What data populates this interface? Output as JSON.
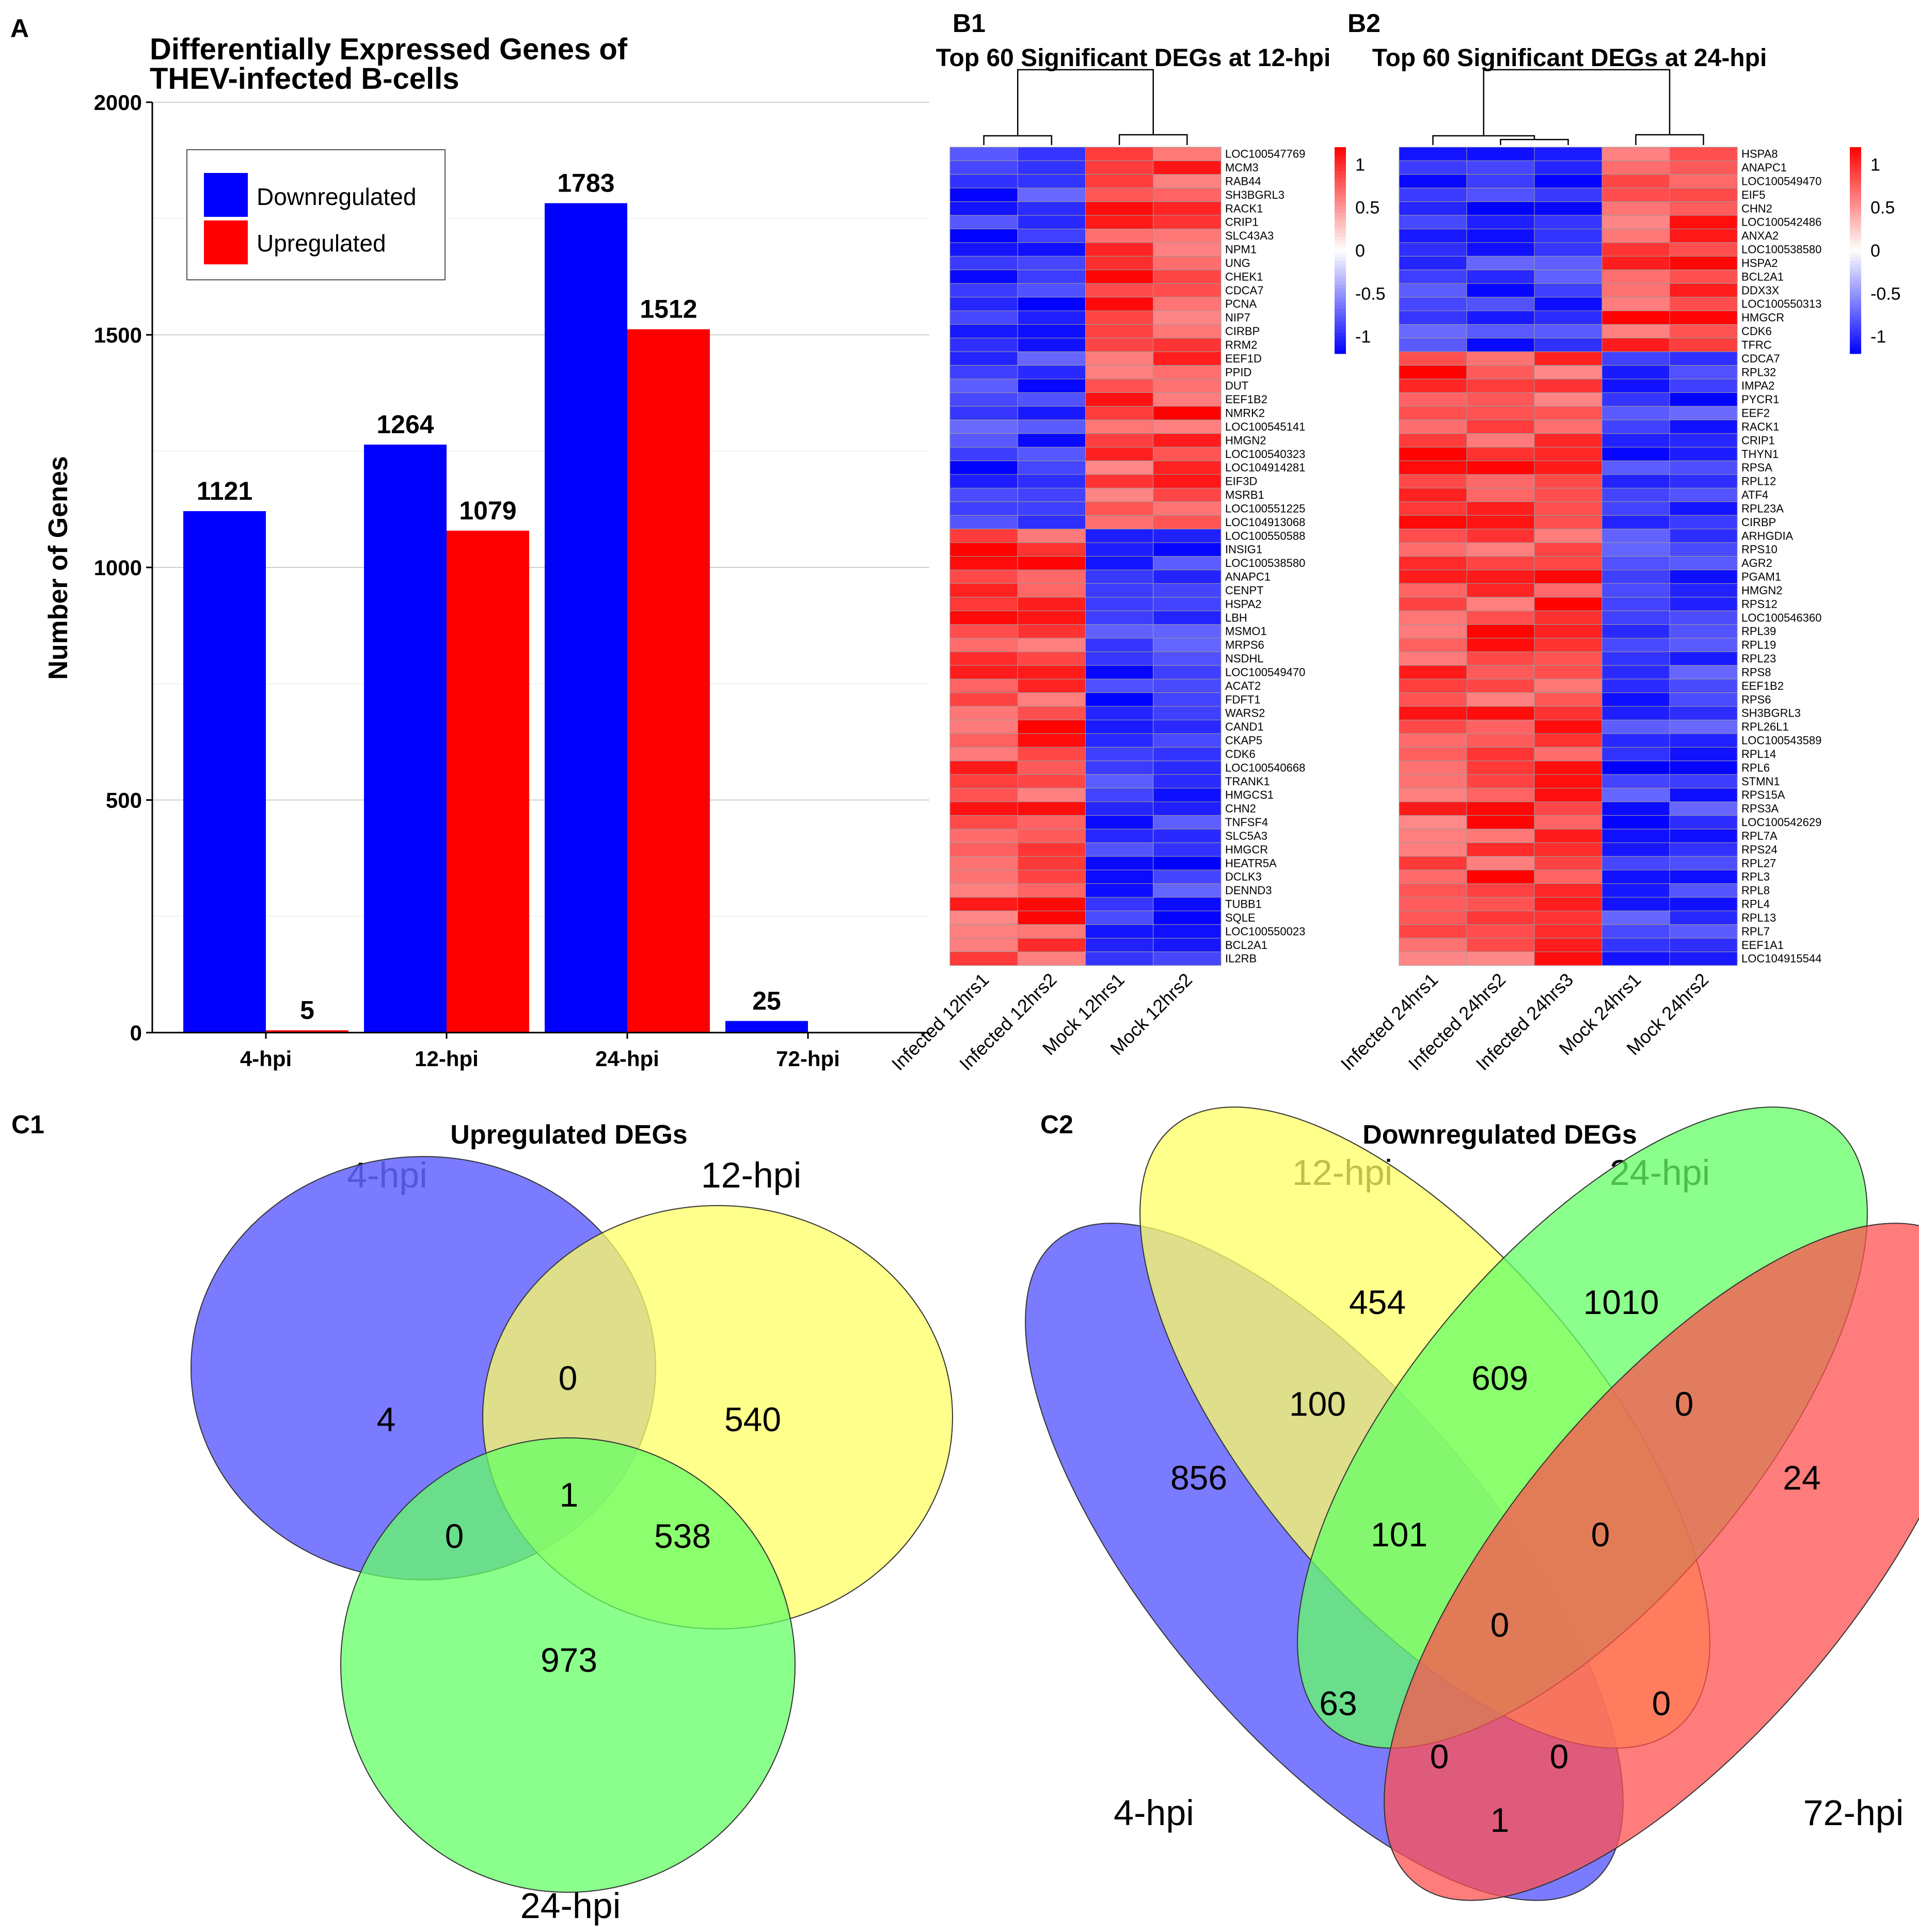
{
  "panels": {
    "A": "A",
    "B1": "B1",
    "B2": "B2",
    "C1": "C1",
    "C2": "C2"
  },
  "colors": {
    "down": "#0000ff",
    "up": "#ff0000",
    "blue_venn": "#6464ff",
    "yellow_venn": "#ffff64",
    "green_venn": "#64ff64",
    "red_venn": "#ff5050"
  },
  "chart_data": [
    {
      "id": "A",
      "type": "bar",
      "title_lines": [
        "Differentially Expressed Genes of",
        "THEV-infected B-cells"
      ],
      "xlabel": "",
      "ylabel": "Number of Genes",
      "categories": [
        "4-hpi",
        "12-hpi",
        "24-hpi",
        "72-hpi"
      ],
      "series": [
        {
          "name": "Downregulated",
          "values": [
            1121,
            1264,
            1783,
            25
          ],
          "color": "#0000ff"
        },
        {
          "name": "Upregulated",
          "values": [
            5,
            1079,
            1512,
            0
          ],
          "color": "#ff0000"
        }
      ],
      "ylim": [
        0,
        2000
      ],
      "yticks": [
        0,
        500,
        1000,
        1500,
        2000
      ],
      "grid": true,
      "legend": "top-left"
    },
    {
      "id": "B1",
      "type": "heatmap",
      "title": "Top 60 Significant DEGs at 12-hpi",
      "columns": [
        "Infected 12hrs1",
        "Infected 12hrs2",
        "Mock 12hrs1",
        "Mock 12hrs2"
      ],
      "rows": [
        "LOC100547769",
        "MCM3",
        "RAB44",
        "SH3BGRL3",
        "RACK1",
        "CRIP1",
        "SLC43A3",
        "NPM1",
        "UNG",
        "CHEK1",
        "CDCA7",
        "PCNA",
        "NIP7",
        "CIRBP",
        "RRM2",
        "EEF1D",
        "PPID",
        "DUT",
        "EEF1B2",
        "NMRK2",
        "LOC100545141",
        "HMGN2",
        "LOC100540323",
        "LOC104914281",
        "EIF3D",
        "MSRB1",
        "LOC100551225",
        "LOC104913068",
        "LOC100550588",
        "INSIG1",
        "LOC100538580",
        "ANAPC1",
        "CENPT",
        "HSPA2",
        "LBH",
        "MSMO1",
        "MRPS6",
        "NSDHL",
        "LOC100549470",
        "ACAT2",
        "FDFT1",
        "WARS2",
        "CAND1",
        "CKAP5",
        "CDK6",
        "LOC100540668",
        "TRANK1",
        "HMGCS1",
        "CHN2",
        "TNFSF4",
        "SLC5A3",
        "HMGCR",
        "HEATR5A",
        "DCLK3",
        "DENND3",
        "TUBB1",
        "SQLE",
        "LOC100550023",
        "BCL2A1",
        "IL2RB"
      ],
      "split_row": 28,
      "scale_ticks": [
        "1",
        "0.5",
        "0",
        "-0.5",
        "-1"
      ],
      "scale_range": [
        -1.2,
        1.2
      ]
    },
    {
      "id": "B2",
      "type": "heatmap",
      "title": "Top 60 Significant DEGs at 24-hpi",
      "columns": [
        "Infected 24hrs1",
        "Infected 24hrs2",
        "Infected 24hrs3",
        "Mock 24hrs1",
        "Mock 24hrs2"
      ],
      "rows": [
        "HSPA8",
        "ANAPC1",
        "LOC100549470",
        "EIF5",
        "CHN2",
        "LOC100542486",
        "ANXA2",
        "LOC100538580",
        "HSPA2",
        "BCL2A1",
        "DDX3X",
        "LOC100550313",
        "HMGCR",
        "CDK6",
        "TFRC",
        "CDCA7",
        "RPL32",
        "IMPA2",
        "PYCR1",
        "EEF2",
        "RACK1",
        "CRIP1",
        "THYN1",
        "RPSA",
        "RPL12",
        "ATF4",
        "RPL23A",
        "CIRBP",
        "ARHGDIA",
        "RPS10",
        "AGR2",
        "PGAM1",
        "HMGN2",
        "RPS12",
        "LOC100546360",
        "RPL39",
        "RPL19",
        "RPL23",
        "RPS8",
        "EEF1B2",
        "RPS6",
        "SH3BGRL3",
        "RPL26L1",
        "LOC100543589",
        "RPL14",
        "RPL6",
        "STMN1",
        "RPS15A",
        "RPS3A",
        "LOC100542629",
        "RPL7A",
        "RPS24",
        "RPL27",
        "RPL3",
        "RPL8",
        "RPL4",
        "RPL13",
        "RPL7",
        "EEF1A1",
        "LOC104915544"
      ],
      "split_row": 15,
      "scale_ticks": [
        "1",
        "0.5",
        "0",
        "-0.5",
        "-1"
      ],
      "scale_range": [
        -1.2,
        1.2
      ]
    }
  ],
  "venn_c1": {
    "title": "Upregulated DEGs",
    "set_labels": [
      "4-hpi",
      "12-hpi",
      "24-hpi"
    ],
    "regions": {
      "only_4": "4",
      "only_12": "540",
      "only_24": "973",
      "4_12": "0",
      "4_24": "0",
      "12_24": "538",
      "all": "1"
    }
  },
  "venn_c2": {
    "title": "Downregulated DEGs",
    "set_labels": [
      "12-hpi",
      "24-hpi",
      "4-hpi",
      "72-hpi"
    ],
    "regions": {
      "r1": "454",
      "r2": "1010",
      "r3": "100",
      "r4": "609",
      "r5": "0",
      "r6": "856",
      "r7": "24",
      "r8": "101",
      "r9": "0",
      "r10": "0",
      "r11": "63",
      "r12": "0",
      "r13": "0",
      "r14": "0",
      "r15": "1"
    }
  }
}
